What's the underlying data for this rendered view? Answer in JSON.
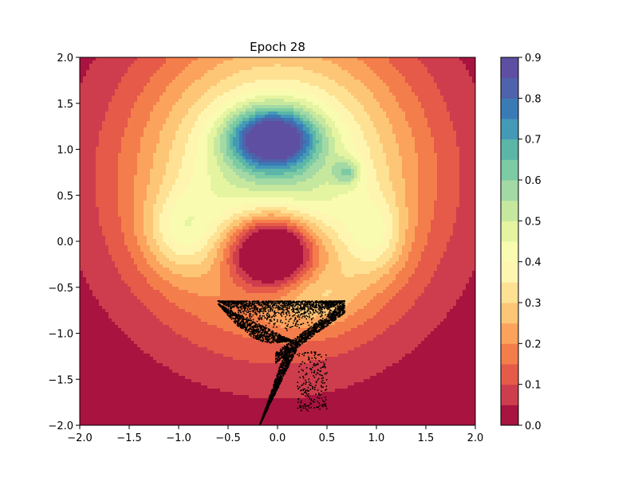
{
  "chart_data": {
    "type": "contourf",
    "title": "Epoch 28",
    "xlabel": "",
    "ylabel": "",
    "xlim": [
      -2.0,
      2.0
    ],
    "ylim": [
      -2.0,
      2.0
    ],
    "x_ticks": [
      -2.0,
      -1.5,
      -1.0,
      -0.5,
      0.0,
      0.5,
      1.0,
      1.5,
      2.0
    ],
    "x_tick_labels": [
      "−2.0",
      "−1.5",
      "−1.0",
      "−0.5",
      "0.0",
      "0.5",
      "1.0",
      "1.5",
      "2.0"
    ],
    "y_ticks": [
      -2.0,
      -1.5,
      -1.0,
      -0.5,
      0.0,
      0.5,
      1.0,
      1.5,
      2.0
    ],
    "y_tick_labels": [
      "−2.0",
      "−1.5",
      "−1.0",
      "−0.5",
      "0.0",
      "0.5",
      "1.0",
      "1.5",
      "2.0"
    ],
    "colormap": "Spectral",
    "contour_levels": [
      0.0,
      0.05,
      0.1,
      0.15,
      0.2,
      0.25,
      0.3,
      0.35,
      0.4,
      0.45,
      0.5,
      0.55,
      0.6,
      0.65,
      0.7,
      0.75,
      0.8,
      0.85,
      0.9
    ],
    "level_colors": [
      "#a9133f",
      "#ce3d4d",
      "#e55a48",
      "#f47e4b",
      "#fba35d",
      "#fdc677",
      "#fee193",
      "#fef6b0",
      "#f9fcb0",
      "#e5f4a0",
      "#c6e89e",
      "#a3d9a4",
      "#7ccba4",
      "#5cb6a8",
      "#4499b7",
      "#3a7bb6",
      "#4e63ab",
      "#5e4fa2"
    ],
    "colorbar": {
      "ticks": [
        0.0,
        0.1,
        0.2,
        0.3,
        0.4,
        0.5,
        0.6,
        0.7,
        0.8,
        0.9
      ],
      "tick_labels": [
        "0.0",
        "0.1",
        "0.2",
        "0.3",
        "0.4",
        "0.5",
        "0.6",
        "0.7",
        "0.8",
        "0.9"
      ],
      "range": [
        0.0,
        0.9
      ]
    },
    "density_model": {
      "description": "approximate density field as sum of gaussian bumps (data units)",
      "bumps": [
        {
          "x": 0.0,
          "y": 0.7,
          "sx": 1.0,
          "sy": 1.1,
          "w": 0.55
        },
        {
          "x": -0.05,
          "y": 1.12,
          "sx": 0.3,
          "sy": 0.22,
          "w": 0.55
        },
        {
          "x": 0.7,
          "y": 0.75,
          "sx": 0.1,
          "sy": 0.1,
          "w": 0.18
        },
        {
          "x": -1.0,
          "y": 0.1,
          "sx": 0.25,
          "sy": 0.3,
          "w": 0.15
        },
        {
          "x": 1.0,
          "y": 0.05,
          "sx": 0.2,
          "sy": 0.3,
          "w": 0.15
        },
        {
          "x": 0.35,
          "y": -0.6,
          "sx": 0.35,
          "sy": 0.25,
          "w": 0.1
        },
        {
          "x": -0.05,
          "y": -0.1,
          "sx": 0.32,
          "sy": 0.3,
          "w": -0.6
        }
      ]
    },
    "samples": {
      "color": "#000000",
      "description": "generated sample scatter forming a tail shape",
      "top_edge_y": -0.65,
      "x_range": [
        -0.6,
        0.68
      ],
      "bottom_point": [
        -0.18,
        -2.0
      ]
    }
  }
}
